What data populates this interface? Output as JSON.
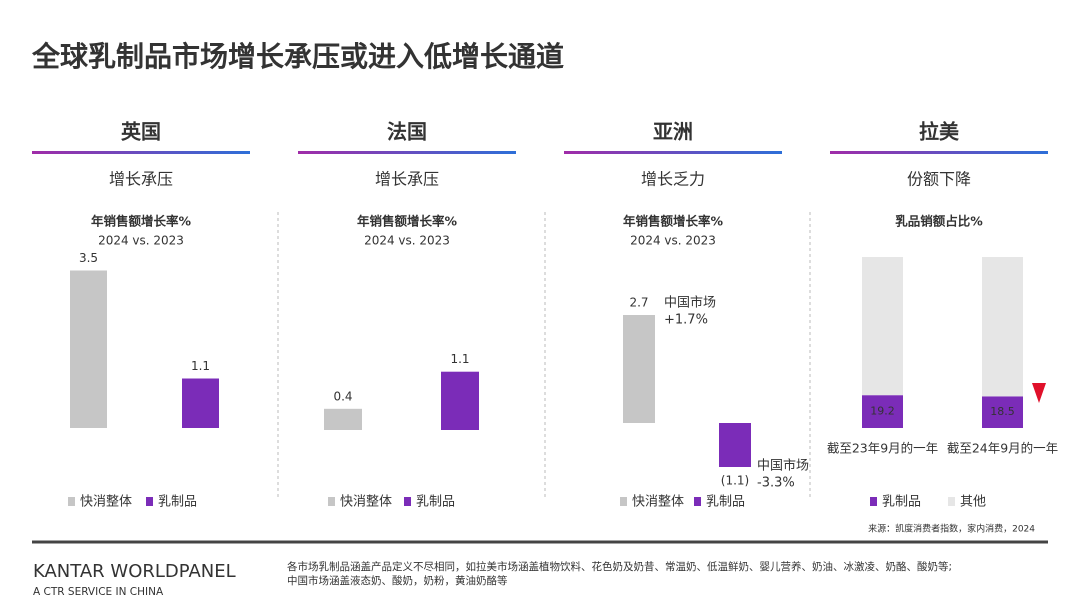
{
  "title": "全球乳制品市场增长承压或进入低增长通道",
  "chart_data": [
    {
      "type": "bar",
      "region": "英国",
      "summary": "增长承压",
      "title": "年销售额增长率%",
      "subtitle": "2024 vs. 2023",
      "series": [
        {
          "name": "快消整体",
          "color": "#c6c6c6",
          "values": [
            3.5
          ]
        },
        {
          "name": "乳制品",
          "color": "#7b2cb8",
          "values": [
            1.1
          ]
        }
      ]
    },
    {
      "type": "bar",
      "region": "法国",
      "summary": "增长承压",
      "title": "年销售额增长率%",
      "subtitle": "2024 vs. 2023",
      "series": [
        {
          "name": "快消整体",
          "color": "#c6c6c6",
          "values": [
            0.4
          ]
        },
        {
          "name": "乳制品",
          "color": "#7b2cb8",
          "values": [
            1.1
          ]
        }
      ]
    },
    {
      "type": "bar",
      "region": "亚洲",
      "summary": "增长乏力",
      "title": "年销售额增长率%",
      "subtitle": "2024 vs. 2023",
      "series": [
        {
          "name": "快消整体",
          "color": "#c6c6c6",
          "values": [
            2.7
          ],
          "annotation": [
            "中国市场",
            "+1.7%"
          ]
        },
        {
          "name": "乳制品",
          "color": "#7b2cb8",
          "values": [
            -1.1
          ],
          "value_labels": [
            "(1.1)"
          ],
          "value_label_color": "#d0282e",
          "annotation": [
            "中国市场",
            "-3.3%"
          ]
        }
      ]
    },
    {
      "type": "stacked_bar",
      "region": "拉美",
      "summary": "份额下降",
      "title": "乳品销额占比%",
      "categories": [
        "截至23年9月的一年",
        "截至24年9月的一年"
      ],
      "series": [
        {
          "name": "乳制品",
          "color": "#7b2cb8",
          "values": [
            19.2,
            18.5
          ]
        },
        {
          "name": "其他",
          "color": "#e6e6e6",
          "values": [
            80.8,
            81.5
          ]
        }
      ]
    }
  ],
  "source": "来源：凯度消费者指数，家内消费，2024",
  "logo": "KANTAR WORLDPANEL",
  "logo_sub": "A CTR SERVICE IN CHINA",
  "notes": [
    "各市场乳制品涵盖产品定义不尽相同，如拉美市场涵盖植物饮料、花色奶及奶昔、常温奶、低温鲜奶、婴儿营养、奶油、冰激凌、奶酪、酸奶等;",
    "中国市场涵盖液态奶、酸奶，奶粉，黄油奶酪等"
  ]
}
